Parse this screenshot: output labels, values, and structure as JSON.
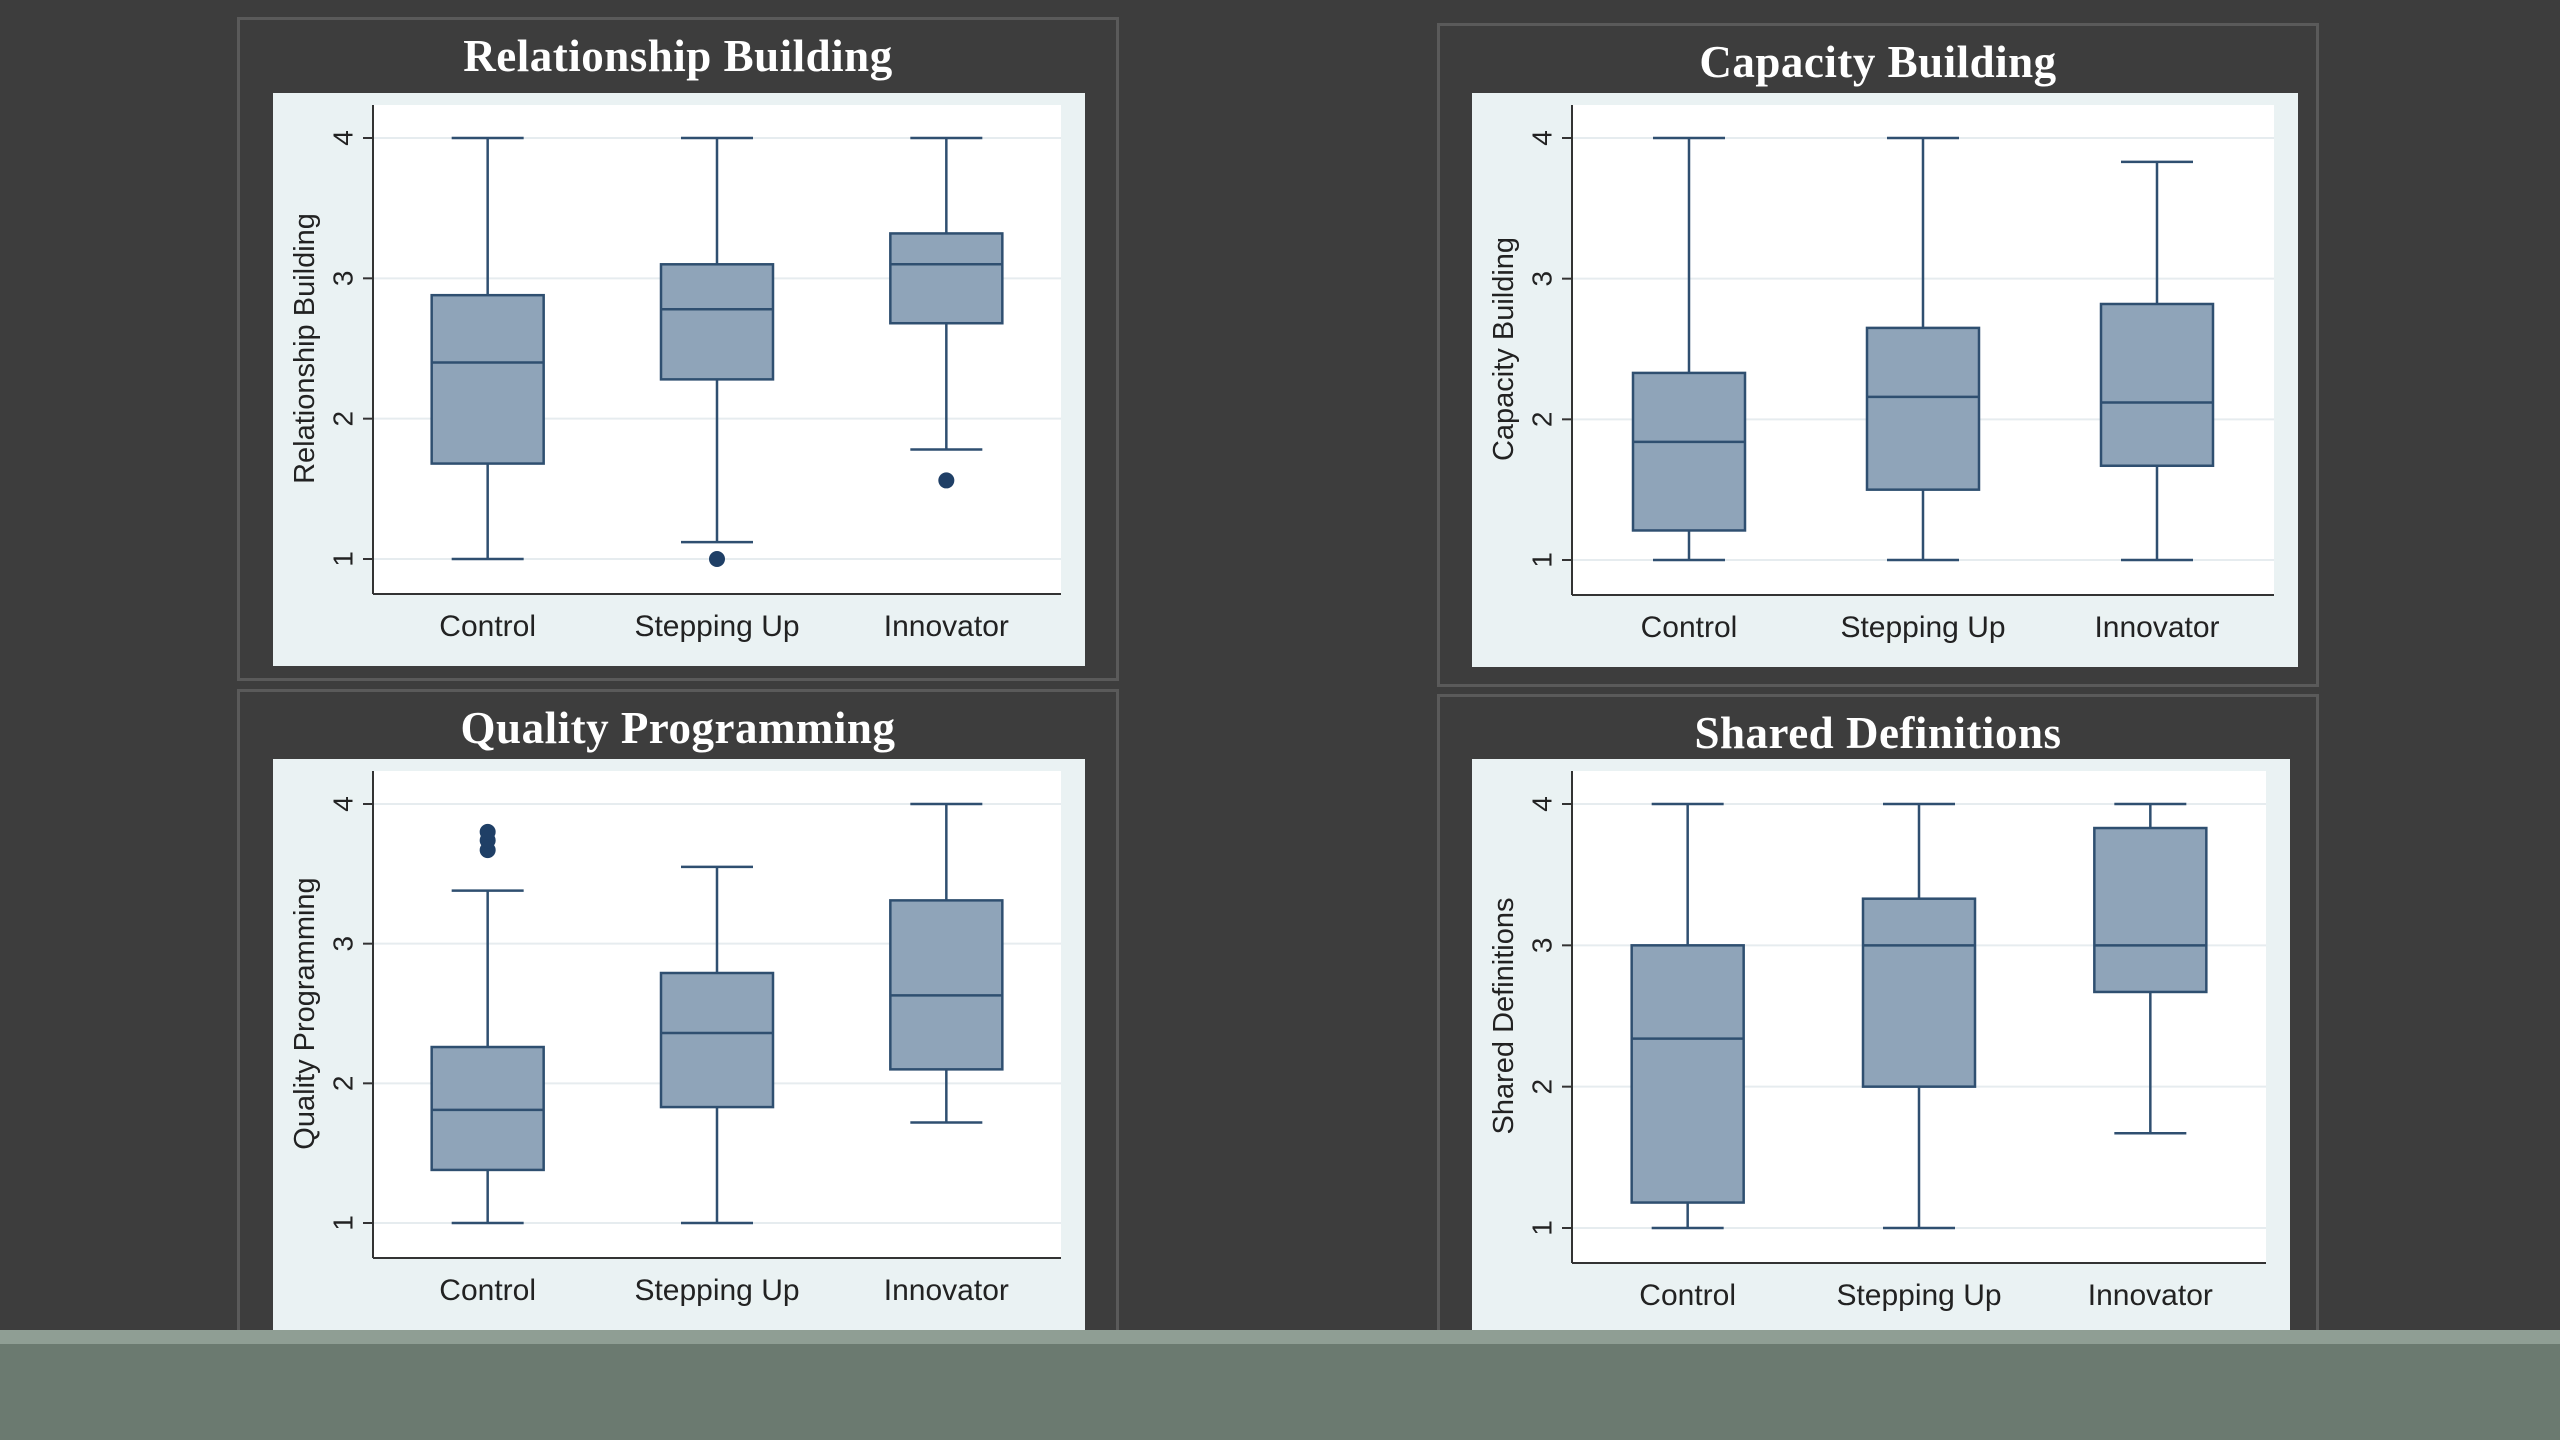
{
  "colors": {
    "page_background": "#3d3d3d",
    "box_fill": "#8fa4b9",
    "box_stroke": "#2f4f70",
    "outlier": "#1f3f66",
    "plot_background": "#eaf2f3",
    "footer": "#6b7a70"
  },
  "chart_data": [
    {
      "type": "boxplot",
      "title": "Relationship Building",
      "ylabel": "Relationship Building",
      "xlabel": "",
      "ylim": [
        1,
        4
      ],
      "yticks": [
        1,
        2,
        3,
        4
      ],
      "grid": true,
      "categories": [
        "Control",
        "Stepping Up",
        "Innovator"
      ],
      "boxes": [
        {
          "min": 1.0,
          "q1": 1.68,
          "median": 2.4,
          "q3": 2.88,
          "max": 4.0,
          "outliers": []
        },
        {
          "min": 1.12,
          "q1": 2.28,
          "median": 2.78,
          "q3": 3.1,
          "max": 4.0,
          "outliers": [
            1.0
          ]
        },
        {
          "min": 1.78,
          "q1": 2.68,
          "median": 3.1,
          "q3": 3.32,
          "max": 4.0,
          "outliers": [
            1.56
          ]
        }
      ]
    },
    {
      "type": "boxplot",
      "title": "Capacity Building",
      "ylabel": "Capacity Building",
      "xlabel": "",
      "ylim": [
        1,
        4
      ],
      "yticks": [
        1,
        2,
        3,
        4
      ],
      "grid": true,
      "categories": [
        "Control",
        "Stepping Up",
        "Innovator"
      ],
      "boxes": [
        {
          "min": 1.0,
          "q1": 1.21,
          "median": 1.84,
          "q3": 2.33,
          "max": 4.0,
          "outliers": []
        },
        {
          "min": 1.0,
          "q1": 1.5,
          "median": 2.16,
          "q3": 2.65,
          "max": 4.0,
          "outliers": []
        },
        {
          "min": 1.0,
          "q1": 1.67,
          "median": 2.12,
          "q3": 2.82,
          "max": 3.83,
          "outliers": []
        }
      ]
    },
    {
      "type": "boxplot",
      "title": "Quality Programming",
      "ylabel": "Quality Programming",
      "xlabel": "",
      "ylim": [
        1,
        4
      ],
      "yticks": [
        1,
        2,
        3,
        4
      ],
      "grid": true,
      "categories": [
        "Control",
        "Stepping Up",
        "Innovator"
      ],
      "boxes": [
        {
          "min": 1.0,
          "q1": 1.38,
          "median": 1.81,
          "q3": 2.26,
          "max": 3.38,
          "outliers": [
            3.67,
            3.74,
            3.8
          ]
        },
        {
          "min": 1.0,
          "q1": 1.83,
          "median": 2.36,
          "q3": 2.79,
          "max": 3.55,
          "outliers": []
        },
        {
          "min": 1.72,
          "q1": 2.1,
          "median": 2.63,
          "q3": 3.31,
          "max": 4.0,
          "outliers": []
        }
      ]
    },
    {
      "type": "boxplot",
      "title": "Shared Definitions",
      "ylabel": "Shared Definitions",
      "xlabel": "",
      "ylim": [
        1,
        4
      ],
      "yticks": [
        1,
        2,
        3,
        4
      ],
      "grid": true,
      "categories": [
        "Control",
        "Stepping Up",
        "Innovator"
      ],
      "boxes": [
        {
          "min": 1.0,
          "q1": 1.18,
          "median": 2.34,
          "q3": 3.0,
          "max": 4.0,
          "outliers": []
        },
        {
          "min": 1.0,
          "q1": 2.0,
          "median": 3.0,
          "q3": 3.33,
          "max": 4.0,
          "outliers": []
        },
        {
          "min": 1.67,
          "q1": 2.67,
          "median": 3.0,
          "q3": 3.83,
          "max": 4.0,
          "outliers": []
        }
      ]
    }
  ]
}
